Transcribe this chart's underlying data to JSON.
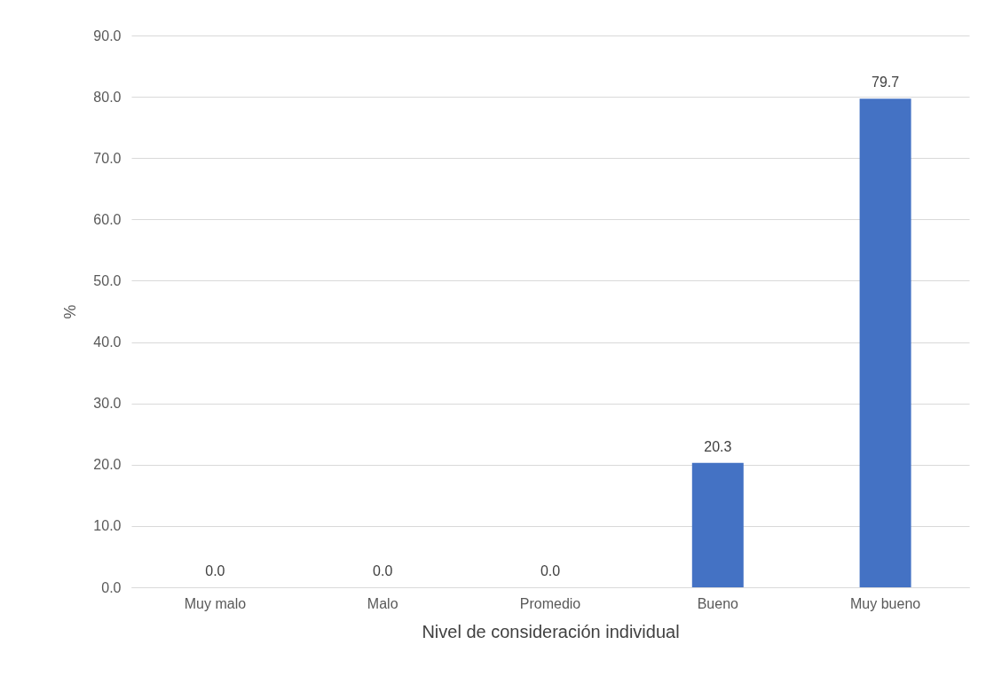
{
  "chart_data": {
    "type": "bar",
    "xlabel": "Nivel de consideración individual",
    "ylabel": "%",
    "categories": [
      "Muy malo",
      "Malo",
      "Promedio",
      "Bueno",
      "Muy bueno"
    ],
    "values": [
      0,
      0,
      0,
      20.3,
      79.7
    ],
    "value_labels": [
      "0.0",
      "0.0",
      "0.0",
      "20.3",
      "79.7"
    ],
    "color": "#4472c4",
    "ylim": [
      0,
      90
    ],
    "yticks": [
      {
        "value": 0,
        "label": "0.0"
      },
      {
        "value": 10,
        "label": "10.0"
      },
      {
        "value": 20,
        "label": "20.0"
      },
      {
        "value": 30,
        "label": "30.0"
      },
      {
        "value": 40,
        "label": "40.0"
      },
      {
        "value": 50,
        "label": "50.0"
      },
      {
        "value": 60,
        "label": "60.0"
      },
      {
        "value": 70,
        "label": "70.0"
      },
      {
        "value": 80,
        "label": "80.0"
      },
      {
        "value": 90,
        "label": "90.0"
      }
    ],
    "grid": "y"
  }
}
